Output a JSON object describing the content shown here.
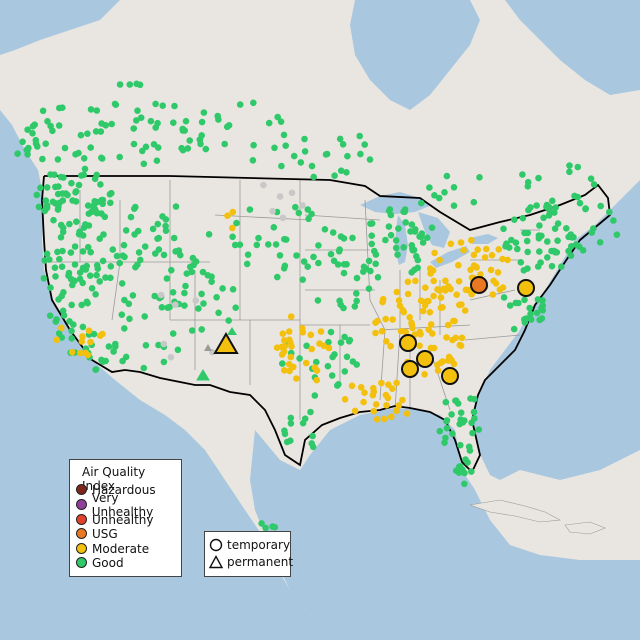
{
  "legend": {
    "title": "Air Quality Index",
    "categories": [
      {
        "label": "Hazardous",
        "color": "#7e2718"
      },
      {
        "label": "Very Unhealthy",
        "color": "#8f3f97"
      },
      {
        "label": "Unhealthy",
        "color": "#e2412a"
      },
      {
        "label": "USG",
        "color": "#e87822"
      },
      {
        "label": "Moderate",
        "color": "#f2c00d"
      },
      {
        "label": "Good",
        "color": "#2fc96a"
      }
    ],
    "shapes": [
      {
        "label": "temporary",
        "icon": "circle-outline-icon"
      },
      {
        "label": "permanent",
        "icon": "triangle-outline-icon"
      }
    ]
  },
  "colors": {
    "water": "#a9c7de",
    "land": "#e9e6e1",
    "border": "#000000",
    "state_lines": "#9a9a9a",
    "nodata": "#c8c8c8"
  },
  "highlighted_monitors": [
    {
      "category": "USG",
      "type": "temporary"
    },
    {
      "category": "Moderate",
      "type": "temporary"
    },
    {
      "category": "Moderate",
      "type": "temporary"
    },
    {
      "category": "Moderate",
      "type": "temporary"
    },
    {
      "category": "Moderate",
      "type": "temporary"
    },
    {
      "category": "Moderate",
      "type": "temporary"
    },
    {
      "category": "Moderate",
      "type": "permanent"
    }
  ]
}
